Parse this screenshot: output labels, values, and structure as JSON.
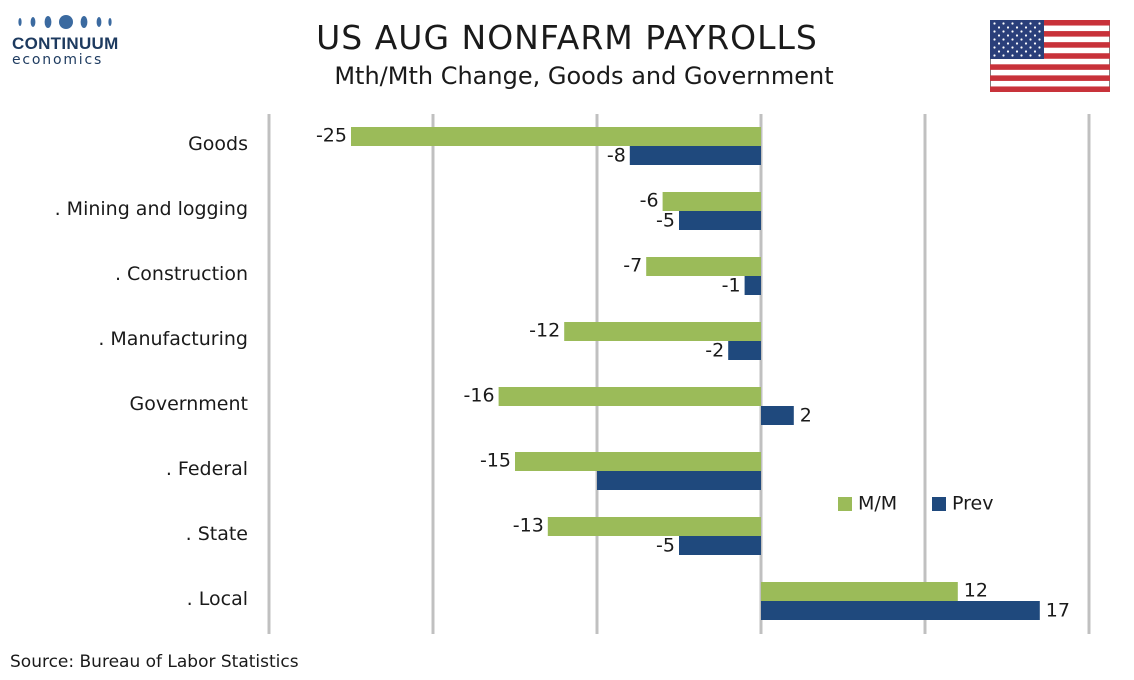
{
  "logo": {
    "line1": "CONTINUUM",
    "line2": "economics"
  },
  "title": "US AUG NONFARM PAYROLLS",
  "subtitle": "Mth/Mth Change, Goods and Government",
  "source": "Source: Bureau of Labor Statistics",
  "colors": {
    "mm": "#9bbb59",
    "prev": "#1f497d",
    "grid": "#c0c0c0",
    "brand": "#1d3a5f"
  },
  "chart_data": {
    "type": "bar",
    "orientation": "horizontal",
    "categories": [
      "Goods",
      ". Mining and logging",
      ". Construction",
      ". Manufacturing",
      "Government",
      ". Federal",
      ". State",
      ". Local"
    ],
    "series": [
      {
        "name": "M/M",
        "values": [
          -25,
          -6,
          -7,
          -12,
          -16,
          -15,
          -13,
          12
        ],
        "labels": [
          "-25",
          "-6",
          "-7",
          "-12",
          "-16",
          "-15",
          "-13",
          "12"
        ]
      },
      {
        "name": "Prev",
        "values": [
          -8,
          -5,
          -1,
          -2,
          2,
          -10,
          -5,
          17
        ],
        "labels": [
          "-8",
          "-5",
          "-1",
          "-2",
          "2",
          "",
          "-5",
          "17"
        ]
      }
    ],
    "xlim": [
      -30,
      20
    ],
    "gridlines_at": [
      -30,
      -20,
      -10,
      0,
      10,
      20
    ],
    "grid": true,
    "legend_position": "right"
  }
}
